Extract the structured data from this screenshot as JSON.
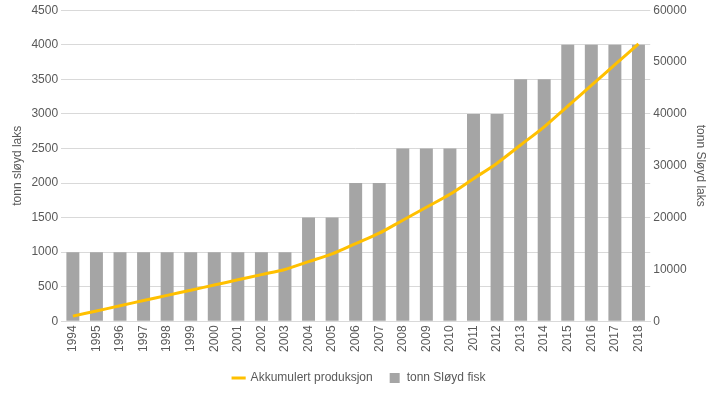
{
  "chart_data": {
    "type": "bar",
    "categories": [
      "1994",
      "1995",
      "1996",
      "1997",
      "1998",
      "1999",
      "2000",
      "2001",
      "2002",
      "2003",
      "2004",
      "2005",
      "2006",
      "2007",
      "2008",
      "2009",
      "2010",
      "2011",
      "2012",
      "2013",
      "2014",
      "2015",
      "2016",
      "2017",
      "2018"
    ],
    "series": [
      {
        "name": "tonn Sløyd fisk",
        "type": "bar",
        "color": "#a5a5a5",
        "values": [
          1000,
          1000,
          1000,
          1000,
          1000,
          1000,
          1000,
          1000,
          1000,
          1000,
          1500,
          1500,
          2000,
          2000,
          2500,
          2500,
          2500,
          3000,
          3000,
          3500,
          3500,
          4000,
          4000,
          4000,
          4000
        ]
      },
      {
        "name": "Akkumulert produksjon",
        "type": "line",
        "color": "#ffc000",
        "axis": "y2",
        "marker": "none",
        "line_style": "solid",
        "values": [
          1000,
          2000,
          3000,
          4000,
          5000,
          6000,
          7000,
          8000,
          9000,
          10000,
          11500,
          13000,
          15000,
          17000,
          19500,
          22000,
          24500,
          27500,
          30500,
          34000,
          37500,
          41500,
          45500,
          49500,
          53500
        ]
      }
    ],
    "y_label": "tonn sløyd laks",
    "y2_label": "tonn Sløyd laks",
    "ylim": [
      0,
      4500
    ],
    "yticks": [
      0,
      500,
      1000,
      1500,
      2000,
      2500,
      3000,
      3500,
      4000,
      4500
    ],
    "y2lim": [
      0,
      60000
    ],
    "y2ticks": [
      0,
      10000,
      20000,
      30000,
      40000,
      50000,
      60000
    ],
    "grid": true,
    "legend": "bottom"
  }
}
